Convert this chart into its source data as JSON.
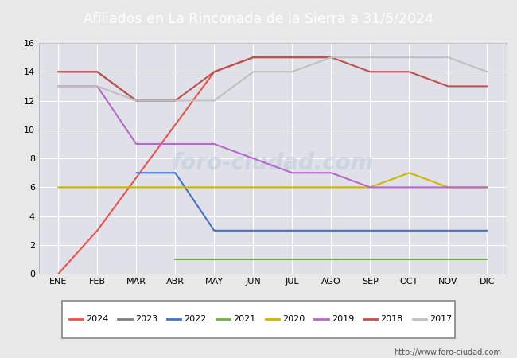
{
  "title": "Afiliados en La Rinconada de la Sierra a 31/5/2024",
  "header_bg": "#5b7fc4",
  "months": [
    "ENE",
    "FEB",
    "MAR",
    "ABR",
    "MAY",
    "JUN",
    "JUL",
    "AGO",
    "SEP",
    "OCT",
    "NOV",
    "DIC"
  ],
  "series": {
    "2024": {
      "color": "#e8534a",
      "data": [
        0,
        3,
        null,
        null,
        14,
        15,
        15,
        15,
        null,
        null,
        null,
        null
      ]
    },
    "2023": {
      "color": "#7f7f7f",
      "data": [
        14,
        14,
        12,
        12,
        null,
        null,
        null,
        null,
        null,
        null,
        null,
        null
      ]
    },
    "2022": {
      "color": "#4472c4",
      "data": [
        null,
        null,
        7,
        7,
        3,
        3,
        3,
        3,
        3,
        3,
        3,
        3
      ]
    },
    "2021": {
      "color": "#70ad47",
      "data": [
        null,
        null,
        null,
        1,
        1,
        1,
        1,
        1,
        1,
        1,
        1,
        1
      ]
    },
    "2020": {
      "color": "#c9b800",
      "data": [
        6,
        6,
        6,
        6,
        6,
        6,
        6,
        6,
        6,
        7,
        6,
        6
      ]
    },
    "2019": {
      "color": "#b569c9",
      "data": [
        13,
        13,
        9,
        9,
        9,
        8,
        7,
        7,
        6,
        6,
        6,
        6
      ]
    },
    "2018": {
      "color": "#c0504d",
      "data": [
        14,
        14,
        12,
        12,
        14,
        15,
        15,
        15,
        14,
        14,
        13,
        13
      ]
    },
    "2017": {
      "color": "#c0c0c0",
      "data": [
        13,
        13,
        12,
        12,
        12,
        14,
        14,
        15,
        15,
        15,
        15,
        14
      ]
    }
  },
  "ylim": [
    0,
    16
  ],
  "yticks": [
    0,
    2,
    4,
    6,
    8,
    10,
    12,
    14,
    16
  ],
  "bg_color": "#e8e8e8",
  "plot_bg": "#e0e0e8",
  "grid_color": "#ffffff",
  "url": "http://www.foro-ciudad.com",
  "legend_years": [
    "2024",
    "2023",
    "2022",
    "2021",
    "2020",
    "2019",
    "2018",
    "2017"
  ]
}
